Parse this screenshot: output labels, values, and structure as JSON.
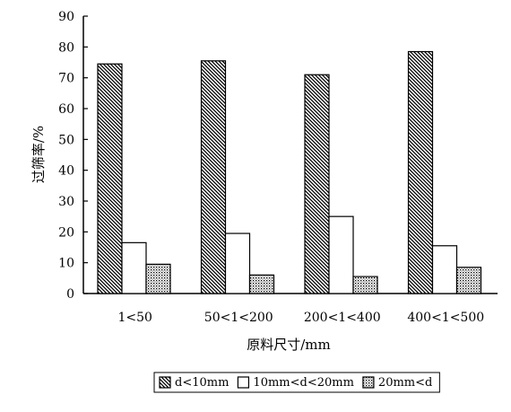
{
  "chart_data": {
    "type": "bar",
    "categories": [
      "1<50",
      "50<1<200",
      "200<1<400",
      "400<1<500"
    ],
    "series": [
      {
        "name": "d<10mm",
        "values": [
          74.5,
          75.5,
          71,
          78.5
        ],
        "pattern": "hatch"
      },
      {
        "name": "10mm<d<20mm",
        "values": [
          16.5,
          19.5,
          25,
          15.5
        ],
        "pattern": "empty"
      },
      {
        "name": "20mm<d",
        "values": [
          9.5,
          6,
          5.5,
          8.5
        ],
        "pattern": "dots"
      }
    ],
    "xlabel": "原料尺寸/mm",
    "ylabel": "过筛率/%",
    "ylim": [
      0,
      90
    ],
    "yticks": [
      0,
      10,
      20,
      30,
      40,
      50,
      60,
      70,
      80,
      90
    ],
    "grid": false,
    "legend": "bottom"
  }
}
